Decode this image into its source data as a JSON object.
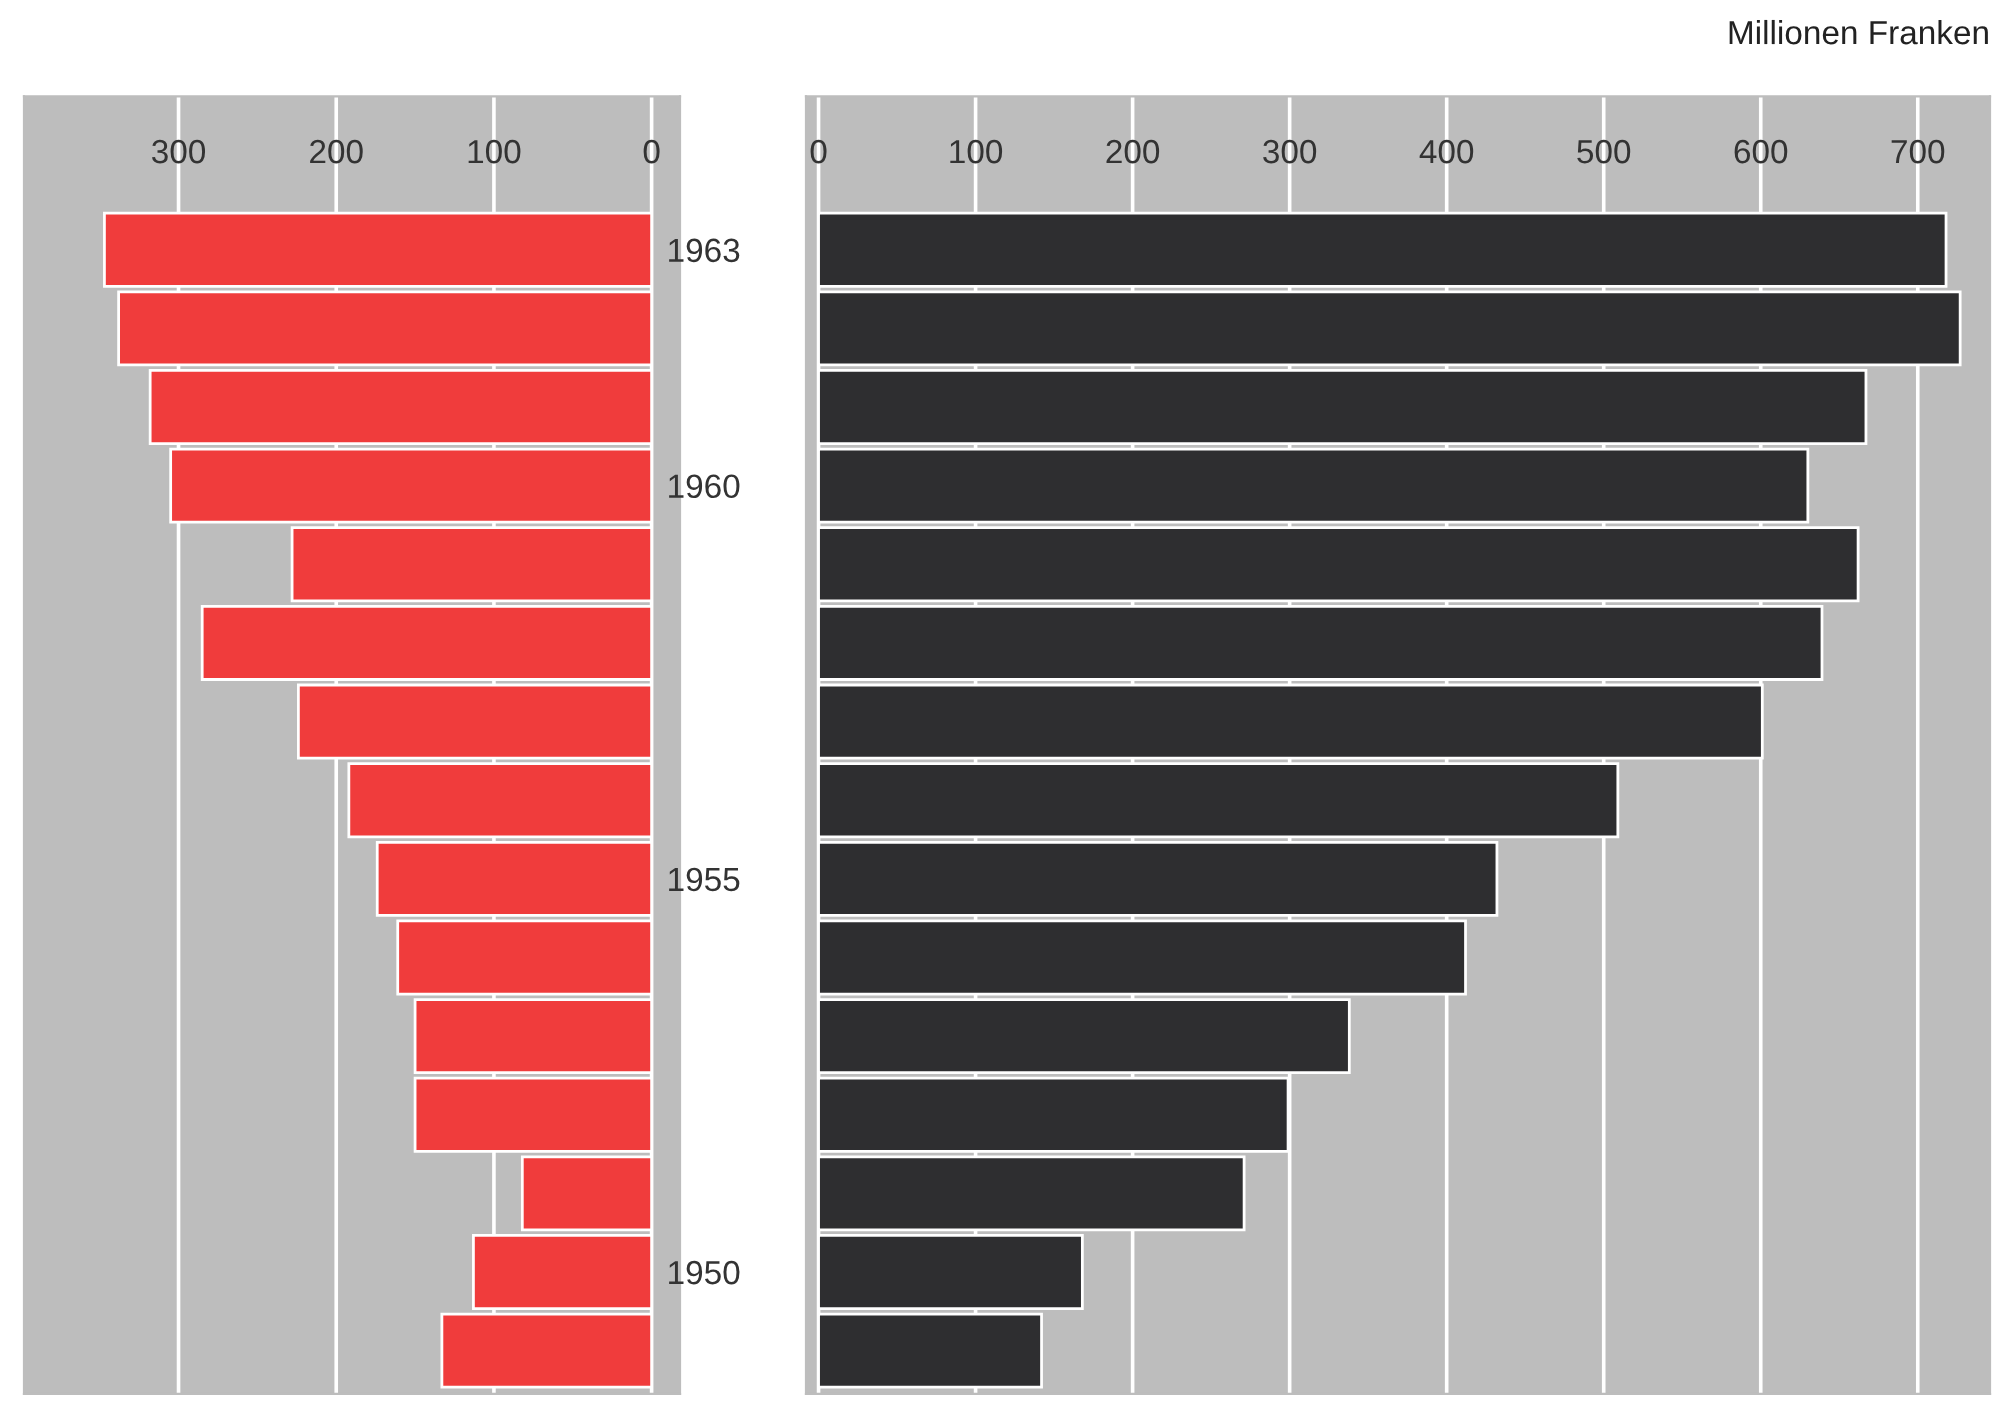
{
  "chart_data": [
    {
      "type": "bar",
      "orientation": "horizontal",
      "categories": [
        "1963",
        null,
        null,
        "1960",
        null,
        null,
        null,
        null,
        "1955",
        null,
        null,
        null,
        null,
        "1950",
        null
      ],
      "series": [
        {
          "color": "#f03c3c",
          "values": [
            347,
            338,
            318,
            305,
            228,
            285,
            224,
            192,
            174,
            161,
            150,
            150,
            82,
            113,
            133
          ]
        }
      ],
      "xlim": [
        398,
        -18
      ],
      "xticks": [
        300,
        200,
        100,
        0
      ],
      "grid": "x",
      "tick_labels": "x"
    },
    {
      "type": "bar",
      "orientation": "horizontal",
      "xlabel": "Millionen Franken",
      "categories": [
        "1963",
        null,
        null,
        "1960",
        null,
        null,
        null,
        null,
        "1955",
        null,
        null,
        null,
        null,
        "1950",
        null
      ],
      "series": [
        {
          "color": "#2e2e30",
          "values": [
            718,
            727,
            667,
            630,
            662,
            639,
            601,
            509,
            432,
            412,
            338,
            299,
            271,
            168,
            142
          ]
        }
      ],
      "xlim": [
        -8,
        746
      ],
      "xticks": [
        0,
        100,
        200,
        300,
        400,
        500,
        600,
        700
      ],
      "grid": "x"
    }
  ]
}
